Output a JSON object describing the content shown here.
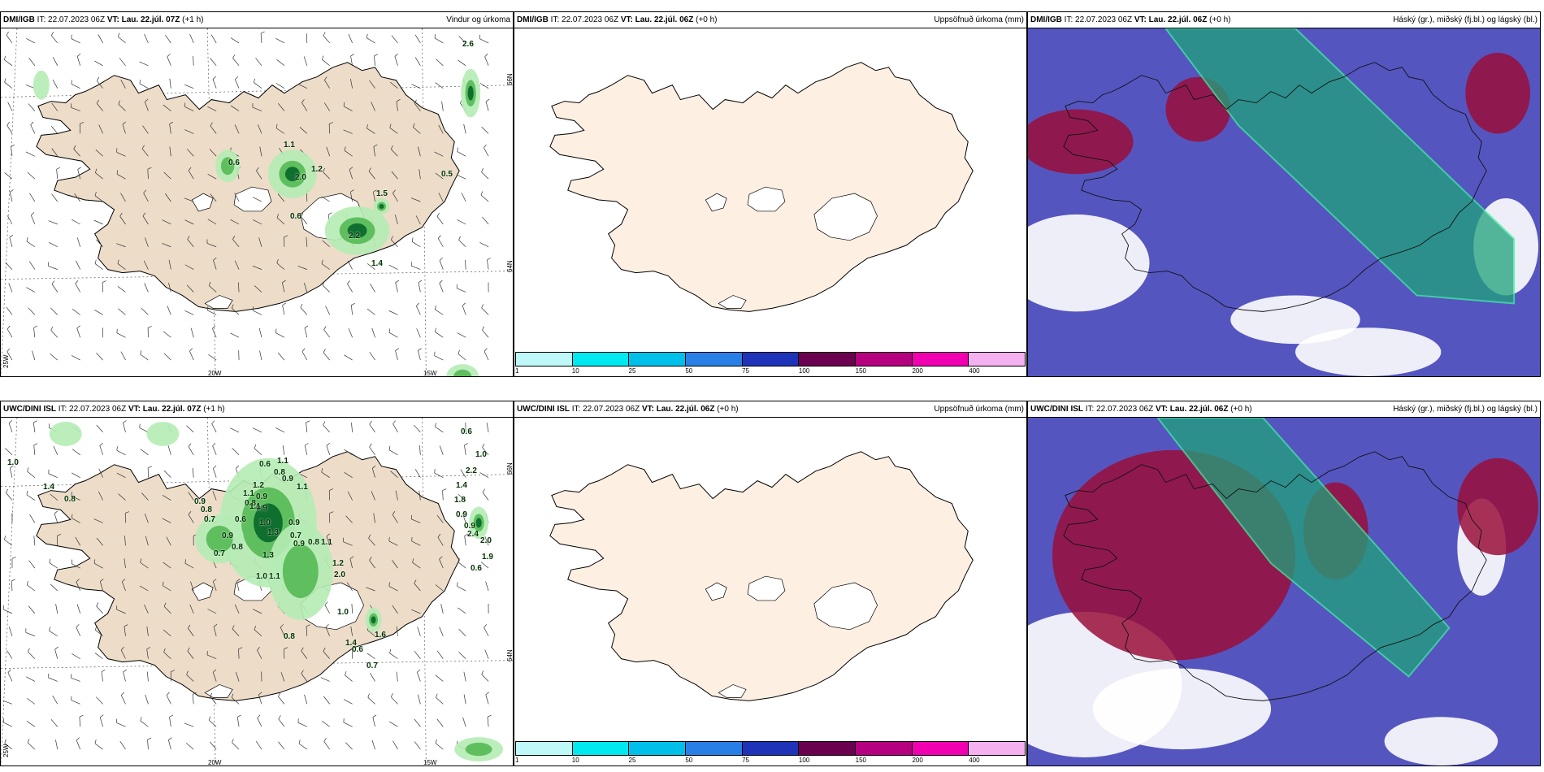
{
  "colors": {
    "land": "#ecdcc8",
    "land_plain": "#fdf0e2",
    "rain_light": "#b5ecb5",
    "rain_mid": "#5fbf5f",
    "rain_dark": "#0f6f2f",
    "cloud_high": "#1fa37a",
    "cloud_mid": "#9a0f3a",
    "cloud_low": "#5555c0",
    "clear": "#ffffff"
  },
  "panels": {
    "top_left": {
      "source": "DMI/IGB",
      "it_label": "IT:",
      "it_value": "22.07.2023 06Z",
      "vt": "VT: Lau. 22.júl. 07Z",
      "lead": "(+1 h)",
      "title": "Vindur og úrkoma",
      "labels": [
        "2.6",
        "1.1",
        "0.6",
        "2.0",
        "0.5",
        "1.5",
        "0.6",
        "2.2",
        "1.4",
        "1.2"
      ],
      "axis": {
        "lat_top": "66N",
        "lat_mid": "64N",
        "lat_left_bottom": "25W",
        "lon_a": "20W",
        "lon_b": "15W"
      }
    },
    "top_middle": {
      "source": "DMI/IGB",
      "it_label": "IT:",
      "it_value": "22.07.2023 06Z",
      "vt": "VT: Lau. 22.júl. 06Z",
      "lead": "(+0 h)",
      "title": "Uppsöfnuð úrkoma (mm)"
    },
    "top_right": {
      "source": "DMI/IGB",
      "it_label": "IT:",
      "it_value": "22.07.2023 06Z",
      "vt": "VT: Lau. 22.júl. 06Z",
      "lead": "(+0 h)",
      "title": "Háský (gr.), miðský (fj.bl.) og lágský (bl.)"
    },
    "bottom_left": {
      "source": "UWC/DINI ISL",
      "it_label": "IT:",
      "it_value": "22.07.2023 06Z",
      "vt": "VT: Lau. 22.júl. 07Z",
      "lead": "(+1 h)",
      "title": "",
      "labels": [
        "1.0",
        "1.4",
        "0.8",
        "0.6",
        "1.1",
        "0.8",
        "1.2",
        "1.1",
        "0.9",
        "0.9",
        "0.8",
        "0.9",
        "0.8",
        "0.7",
        "0.6",
        "0.9",
        "0.7",
        "1.0",
        "1.1",
        "1.3",
        "0.9",
        "0.8",
        "1.1",
        "1.2",
        "0.9",
        "0.8",
        "0.7",
        "1.3",
        "1.0",
        "2.0",
        "1.0",
        "1.4",
        "0.8",
        "0.6",
        "1.6",
        "0.7",
        "1.1",
        "2.2",
        "1.4",
        "1.8",
        "0.9",
        "0.9",
        "2.4",
        "2.0",
        "1.9",
        "0.6",
        "0.6",
        "1.0",
        "0.9",
        "1.1"
      ],
      "axis": {
        "lat_top": "66N",
        "lat_mid": "64N",
        "lat_left_bottom": "25W",
        "lon_a": "20W",
        "lon_b": "15W"
      }
    },
    "bottom_middle": {
      "source": "UWC/DINI ISL",
      "it_label": "IT:",
      "it_value": "22.07.2023 06Z",
      "vt": "VT: Lau. 22.júl. 06Z",
      "lead": "(+0 h)",
      "title": "Uppsöfnuð úrkoma (mm)"
    },
    "bottom_right": {
      "source": "UWC/DINI ISL",
      "it_label": "IT:",
      "it_value": "22.07.2023 06Z",
      "vt": "VT: Lau. 22.júl. 06Z",
      "lead": "(+0 h)",
      "title": "Háský (gr.), miðský (fj.bl.) og lágský (bl.)"
    }
  },
  "colorbar": {
    "ticks": [
      "1",
      "10",
      "25",
      "50",
      "75",
      "100",
      "150",
      "200",
      "400"
    ],
    "colors": [
      "#bff8f8",
      "#00e8f0",
      "#00c0ea",
      "#2a7fe6",
      "#1e33b8",
      "#6b0050",
      "#b5007f",
      "#f000b0",
      "#f5b0f0"
    ]
  }
}
